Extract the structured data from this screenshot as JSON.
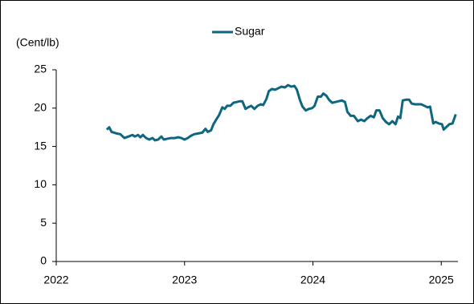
{
  "chart_data": {
    "type": "line",
    "y_label": "(Cent/lb)",
    "legend": "top",
    "x": [
      2022.394,
      2022.413,
      2022.431,
      2022.469,
      2022.5,
      2022.531,
      2022.563,
      2022.594,
      2022.613,
      2022.638,
      2022.656,
      2022.675,
      2022.7,
      2022.725,
      2022.75,
      2022.769,
      2022.794,
      2022.819,
      2022.838,
      2022.863,
      2022.894,
      2022.925,
      2022.95,
      2022.975,
      2023.0,
      2023.025,
      2023.05,
      2023.075,
      2023.106,
      2023.138,
      2023.163,
      2023.181,
      2023.206,
      2023.225,
      2023.25,
      2023.269,
      2023.294,
      2023.313,
      2023.331,
      2023.356,
      2023.381,
      2023.406,
      2023.431,
      2023.45,
      2023.475,
      2023.494,
      2023.519,
      2023.544,
      2023.569,
      2023.594,
      2023.613,
      2023.638,
      2023.656,
      2023.681,
      2023.706,
      2023.731,
      2023.756,
      2023.781,
      2023.806,
      2023.831,
      2023.856,
      2023.875,
      2023.9,
      2023.919,
      2023.944,
      2023.969,
      2023.994,
      2024.013,
      2024.038,
      2024.063,
      2024.081,
      2024.106,
      2024.125,
      2024.15,
      2024.175,
      2024.2,
      2024.225,
      2024.25,
      2024.269,
      2024.294,
      2024.319,
      2024.35,
      2024.375,
      2024.4,
      2024.425,
      2024.45,
      2024.475,
      2024.494,
      2024.519,
      2024.544,
      2024.569,
      2024.594,
      2024.619,
      2024.644,
      2024.663,
      2024.681,
      2024.7,
      2024.725,
      2024.75,
      2024.769,
      2024.794,
      2024.819,
      2024.844,
      2024.869,
      2024.894,
      2024.913,
      2024.938,
      2024.956,
      2024.981,
      2025.006,
      2025.019,
      2025.038,
      2025.063,
      2025.088,
      2025.113
    ],
    "series": [
      {
        "name": "Sugar",
        "color": "#0e6680",
        "values": [
          17.2,
          17.5,
          16.9,
          16.7,
          16.6,
          16.1,
          16.3,
          16.5,
          16.3,
          16.5,
          16.2,
          16.5,
          16.1,
          15.9,
          16.1,
          15.8,
          15.9,
          16.3,
          15.9,
          16.0,
          16.1,
          16.1,
          16.2,
          16.1,
          15.9,
          16.1,
          16.4,
          16.6,
          16.7,
          16.8,
          17.3,
          16.9,
          17.1,
          17.9,
          18.6,
          19.1,
          20.1,
          19.9,
          20.3,
          20.3,
          20.7,
          20.8,
          20.9,
          20.9,
          19.9,
          20.1,
          20.3,
          19.9,
          20.3,
          20.5,
          20.4,
          21.2,
          22.2,
          22.5,
          22.4,
          22.6,
          22.8,
          22.7,
          23.0,
          22.8,
          22.9,
          22.4,
          21.0,
          20.2,
          19.7,
          19.9,
          20.0,
          20.3,
          21.5,
          21.5,
          21.9,
          21.6,
          21.1,
          20.7,
          20.8,
          20.9,
          21.0,
          20.8,
          19.5,
          19.0,
          19.0,
          18.3,
          18.5,
          18.3,
          18.7,
          19.0,
          18.8,
          19.7,
          19.7,
          18.7,
          18.2,
          17.9,
          18.3,
          17.9,
          18.9,
          18.7,
          21.0,
          21.1,
          21.1,
          20.6,
          20.5,
          20.5,
          20.5,
          20.3,
          20.1,
          20.2,
          18.0,
          18.2,
          18.0,
          17.9,
          17.2,
          17.5,
          17.9,
          18.0,
          19.2
        ]
      }
    ],
    "xlim": [
      2022,
      2025.13
    ],
    "xticks": [
      2022,
      2023,
      2024,
      2025
    ],
    "ylim": [
      0,
      25
    ],
    "yticks": [
      0,
      5,
      10,
      15,
      20,
      25
    ],
    "grid": false
  }
}
